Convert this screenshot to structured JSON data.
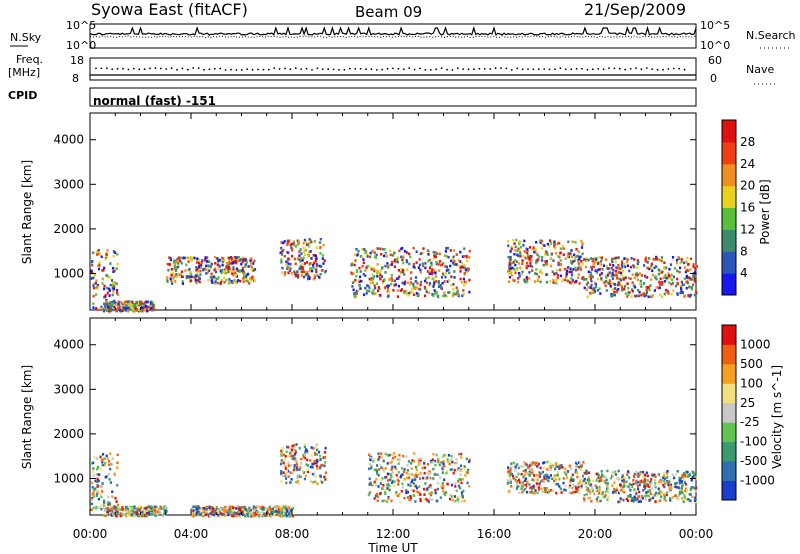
{
  "header": {
    "station": "Syowa East (fitACF)",
    "beam": "Beam 09",
    "date": "21/Sep/2009"
  },
  "panels": {
    "nsky_label": "N.Sky",
    "nsearch_label": "N.Search",
    "freq_label": "Freq.",
    "freq_unit": "[MHz]",
    "nave_label": "Nave",
    "cpid_label": "CPID",
    "cpid_text": "normal (fast) -151",
    "noise_ticks_left": [
      "10^5",
      "10^0"
    ],
    "noise_ticks_right": [
      "10^5",
      "10^0"
    ],
    "freq_ticks": [
      "18",
      "8"
    ],
    "nave_ticks": [
      "60",
      "0"
    ]
  },
  "chart_data": [
    {
      "type": "heatmap",
      "name": "power",
      "ylabel": "Slant Range [km]",
      "ylim": [
        180,
        4600
      ],
      "yticks": [
        1000,
        2000,
        3000,
        4000
      ],
      "colorbar": {
        "label": "Power [dB]",
        "ticks": [
          "4",
          "8",
          "12",
          "16",
          "20",
          "24",
          "28"
        ],
        "colors": [
          "#1717ee",
          "#2b55b8",
          "#3b8c6a",
          "#59c03c",
          "#e8d21e",
          "#f09020",
          "#ee4010",
          "#e01010"
        ]
      },
      "echo_regions": [
        {
          "t": [
            0.0,
            1.1
          ],
          "r": [
            180,
            1600
          ]
        },
        {
          "t": [
            0.5,
            2.5
          ],
          "r": [
            180,
            400
          ]
        },
        {
          "t": [
            3.0,
            6.5
          ],
          "r": [
            800,
            1400
          ]
        },
        {
          "t": [
            7.5,
            9.3
          ],
          "r": [
            900,
            1800
          ]
        },
        {
          "t": [
            10.3,
            15.0
          ],
          "r": [
            500,
            1600
          ]
        },
        {
          "t": [
            16.5,
            19.5
          ],
          "r": [
            800,
            1800
          ]
        },
        {
          "t": [
            19.5,
            24.0
          ],
          "r": [
            500,
            1400
          ]
        }
      ]
    },
    {
      "type": "heatmap",
      "name": "velocity",
      "ylabel": "Slant Range [km]",
      "ylim": [
        180,
        4600
      ],
      "yticks": [
        1000,
        2000,
        3000,
        4000
      ],
      "xlabel": "Time UT",
      "xticks": [
        "00:00",
        "04:00",
        "08:00",
        "12:00",
        "16:00",
        "20:00",
        "00:00"
      ],
      "colorbar": {
        "label": "Velocity [m s^-1]",
        "ticks": [
          "1000",
          "500",
          "100",
          "25",
          "-25",
          "-100",
          "-500",
          "-1000"
        ],
        "colors": [
          "#1a3fcc",
          "#2f6fb0",
          "#3a9a70",
          "#5fc450",
          "#c8c8c8",
          "#f0e080",
          "#f5a020",
          "#f06010",
          "#e01010"
        ]
      },
      "echo_regions": [
        {
          "t": [
            0.0,
            1.1
          ],
          "r": [
            300,
            1600
          ]
        },
        {
          "t": [
            0.5,
            3.0
          ],
          "r": [
            180,
            400
          ]
        },
        {
          "t": [
            4.0,
            8.0
          ],
          "r": [
            180,
            400
          ]
        },
        {
          "t": [
            7.5,
            9.3
          ],
          "r": [
            900,
            1800
          ]
        },
        {
          "t": [
            11.0,
            15.0
          ],
          "r": [
            500,
            1600
          ]
        },
        {
          "t": [
            16.5,
            19.5
          ],
          "r": [
            700,
            1400
          ]
        },
        {
          "t": [
            19.5,
            24.0
          ],
          "r": [
            500,
            1200
          ]
        }
      ]
    }
  ]
}
